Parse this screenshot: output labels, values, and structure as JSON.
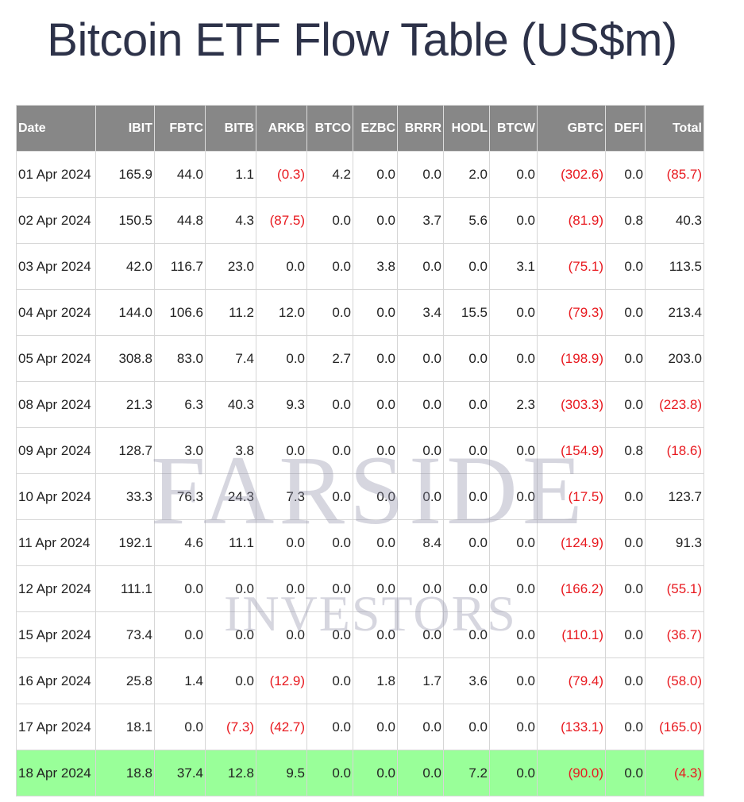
{
  "page": {
    "title": "Bitcoin ETF Flow Table (US$m)"
  },
  "watermark": {
    "line1": "FARSIDE",
    "line2": "INVESTORS",
    "color": "#8c8ea5"
  },
  "colors": {
    "header_bg": "#878787",
    "negative": "#e8191f",
    "highlight_row": "#99ff99",
    "title": "#2d3249"
  },
  "chart_data": {
    "type": "table",
    "title": "Bitcoin ETF Flow Table (US$m)",
    "columns": [
      "Date",
      "IBIT",
      "FBTC",
      "BITB",
      "ARKB",
      "BTCO",
      "EZBC",
      "BRRR",
      "HODL",
      "BTCW",
      "GBTC",
      "DEFI",
      "Total"
    ],
    "rows": [
      {
        "date": "01 Apr 2024",
        "values": [
          165.9,
          44.0,
          1.1,
          -0.3,
          4.2,
          0.0,
          0.0,
          2.0,
          0.0,
          -302.6,
          0.0,
          -85.7
        ],
        "highlight": false
      },
      {
        "date": "02 Apr 2024",
        "values": [
          150.5,
          44.8,
          4.3,
          -87.5,
          0.0,
          0.0,
          3.7,
          5.6,
          0.0,
          -81.9,
          0.8,
          40.3
        ],
        "highlight": false
      },
      {
        "date": "03 Apr 2024",
        "values": [
          42.0,
          116.7,
          23.0,
          0.0,
          0.0,
          3.8,
          0.0,
          0.0,
          3.1,
          -75.1,
          0.0,
          113.5
        ],
        "highlight": false
      },
      {
        "date": "04 Apr 2024",
        "values": [
          144.0,
          106.6,
          11.2,
          12.0,
          0.0,
          0.0,
          3.4,
          15.5,
          0.0,
          -79.3,
          0.0,
          213.4
        ],
        "highlight": false
      },
      {
        "date": "05 Apr 2024",
        "values": [
          308.8,
          83.0,
          7.4,
          0.0,
          2.7,
          0.0,
          0.0,
          0.0,
          0.0,
          -198.9,
          0.0,
          203.0
        ],
        "highlight": false
      },
      {
        "date": "08 Apr 2024",
        "values": [
          21.3,
          6.3,
          40.3,
          9.3,
          0.0,
          0.0,
          0.0,
          0.0,
          2.3,
          -303.3,
          0.0,
          -223.8
        ],
        "highlight": false
      },
      {
        "date": "09 Apr 2024",
        "values": [
          128.7,
          3.0,
          3.8,
          0.0,
          0.0,
          0.0,
          0.0,
          0.0,
          0.0,
          -154.9,
          0.8,
          -18.6
        ],
        "highlight": false
      },
      {
        "date": "10 Apr 2024",
        "values": [
          33.3,
          76.3,
          24.3,
          7.3,
          0.0,
          0.0,
          0.0,
          0.0,
          0.0,
          -17.5,
          0.0,
          123.7
        ],
        "highlight": false
      },
      {
        "date": "11 Apr 2024",
        "values": [
          192.1,
          4.6,
          11.1,
          0.0,
          0.0,
          0.0,
          8.4,
          0.0,
          0.0,
          -124.9,
          0.0,
          91.3
        ],
        "highlight": false
      },
      {
        "date": "12 Apr 2024",
        "values": [
          111.1,
          0.0,
          0.0,
          0.0,
          0.0,
          0.0,
          0.0,
          0.0,
          0.0,
          -166.2,
          0.0,
          -55.1
        ],
        "highlight": false
      },
      {
        "date": "15 Apr 2024",
        "values": [
          73.4,
          0.0,
          0.0,
          0.0,
          0.0,
          0.0,
          0.0,
          0.0,
          0.0,
          -110.1,
          0.0,
          -36.7
        ],
        "highlight": false
      },
      {
        "date": "16 Apr 2024",
        "values": [
          25.8,
          1.4,
          0.0,
          -12.9,
          0.0,
          1.8,
          1.7,
          3.6,
          0.0,
          -79.4,
          0.0,
          -58.0
        ],
        "highlight": false
      },
      {
        "date": "17 Apr 2024",
        "values": [
          18.1,
          0.0,
          -7.3,
          -42.7,
          0.0,
          0.0,
          0.0,
          0.0,
          0.0,
          -133.1,
          0.0,
          -165.0
        ],
        "highlight": false
      },
      {
        "date": "18 Apr 2024",
        "values": [
          18.8,
          37.4,
          12.8,
          9.5,
          0.0,
          0.0,
          0.0,
          7.2,
          0.0,
          -90.0,
          0.0,
          -4.3
        ],
        "highlight": true
      }
    ],
    "negative_format": "parentheses"
  }
}
